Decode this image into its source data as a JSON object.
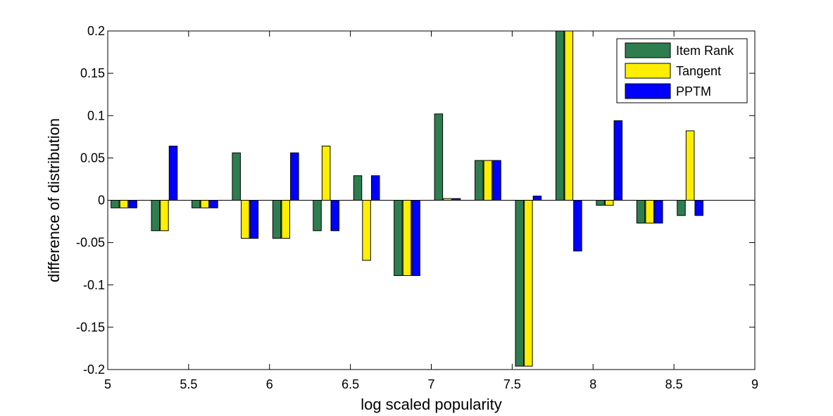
{
  "chart_data": {
    "type": "bar",
    "title": "",
    "xlabel": "log scaled popularity",
    "ylabel": "difference of distribution",
    "xlim": [
      5,
      9
    ],
    "ylim": [
      -0.2,
      0.2
    ],
    "x_ticks": [
      5,
      5.5,
      6,
      6.5,
      7,
      7.5,
      8,
      8.5,
      9
    ],
    "x_tick_labels": [
      "5",
      "5.5",
      "6",
      "6.5",
      "7",
      "7.5",
      "8",
      "8.5",
      "9"
    ],
    "y_ticks": [
      -0.2,
      -0.15,
      -0.1,
      -0.05,
      0,
      0.05,
      0.1,
      0.15,
      0.2
    ],
    "y_tick_labels": [
      "-0.2",
      "-0.15",
      "-0.1",
      "-0.05",
      "0",
      "0.05",
      "0.1",
      "0.15",
      "0.2"
    ],
    "x": [
      5.1,
      5.35,
      5.6,
      5.85,
      6.1,
      6.35,
      6.6,
      6.85,
      7.1,
      7.35,
      7.6,
      7.85,
      8.1,
      8.35,
      8.6
    ],
    "grid": false,
    "legend_position": "top-right",
    "series": [
      {
        "name": "Item Rank",
        "color": "#2e7d4f",
        "values": [
          -0.009,
          -0.036,
          -0.009,
          0.056,
          -0.045,
          -0.036,
          0.029,
          -0.089,
          0.102,
          0.047,
          -0.196,
          0.2,
          -0.006,
          -0.027,
          -0.018
        ]
      },
      {
        "name": "Tangent",
        "color": "#ffee00",
        "values": [
          -0.009,
          -0.036,
          -0.009,
          -0.045,
          -0.045,
          0.064,
          -0.071,
          -0.089,
          0.002,
          0.047,
          -0.196,
          0.2,
          -0.006,
          -0.027,
          0.082
        ]
      },
      {
        "name": "PPTM",
        "color": "#0000ff",
        "values": [
          -0.009,
          0.064,
          -0.009,
          -0.045,
          0.056,
          -0.036,
          0.029,
          -0.089,
          0.002,
          0.047,
          0.005,
          -0.06,
          0.094,
          -0.027,
          -0.018
        ]
      }
    ]
  }
}
